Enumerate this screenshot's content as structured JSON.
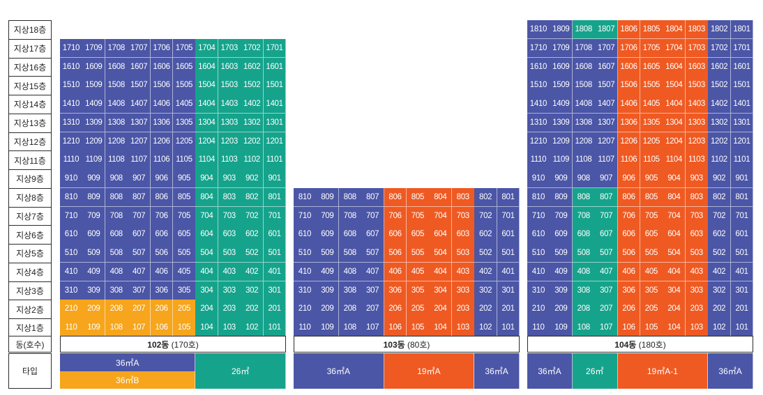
{
  "colors": {
    "blue": "#4b56a6",
    "green": "#16a38c",
    "orange": "#ef5a22",
    "yellow": "#f6a51c"
  },
  "floor_labels": [
    "지상18층",
    "지상17층",
    "지상16층",
    "지상15층",
    "지상14층",
    "지상13층",
    "지상12층",
    "지상11층",
    "지상9층",
    "지상8층",
    "지상7층",
    "지상6층",
    "지상5층",
    "지상4층",
    "지상3층",
    "지상2층",
    "지상1층"
  ],
  "floor_numbers": [
    18,
    17,
    16,
    15,
    14,
    13,
    12,
    11,
    9,
    8,
    7,
    6,
    5,
    4,
    3,
    2,
    1
  ],
  "row_label_dong": "동(호수)",
  "row_label_type": "타입",
  "buildings": [
    {
      "id": "102",
      "name_bold": "102동",
      "name_rest": " (170호)",
      "top_floor": 17,
      "units_per_floor": 10,
      "types": [
        {
          "label": "36㎡A",
          "color": "blue"
        },
        {
          "label": "36㎡B",
          "color": "yellow"
        },
        {
          "label": "26㎡",
          "color": "green"
        }
      ]
    },
    {
      "id": "103",
      "name_bold": "103동",
      "name_rest": " (80호)",
      "top_floor": 8,
      "units_per_floor": 10,
      "types": [
        {
          "label": "36㎡A",
          "color": "blue"
        },
        {
          "label": "19㎡A",
          "color": "orange"
        },
        {
          "label": "36㎡A",
          "color": "blue"
        }
      ]
    },
    {
      "id": "104",
      "name_bold": "104동",
      "name_rest": " (180호)",
      "top_floor": 18,
      "units_per_floor": 10,
      "types": [
        {
          "label": "36㎡A",
          "color": "blue"
        },
        {
          "label": "26㎡",
          "color": "green"
        },
        {
          "label": "19㎡A-1",
          "color": "orange"
        },
        {
          "label": "36㎡A",
          "color": "blue"
        }
      ]
    }
  ]
}
